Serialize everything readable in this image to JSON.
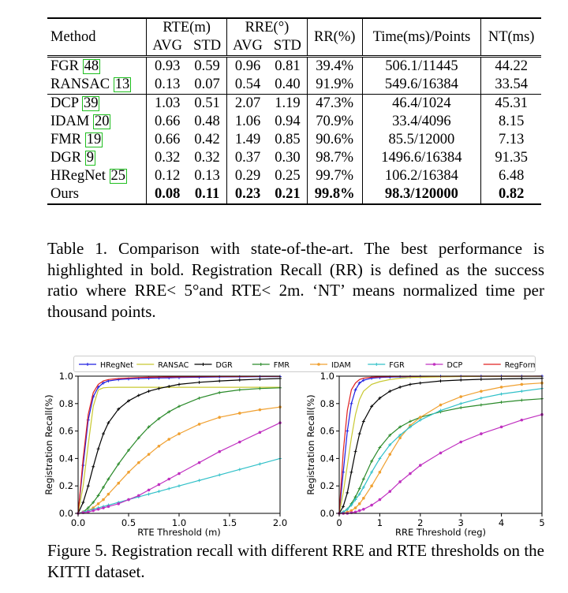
{
  "table": {
    "headers": {
      "method": "Method",
      "rte": "RTE(m)",
      "rre": "RRE(°)",
      "avg": "AVG",
      "std": "STD",
      "rr": "RR(%)",
      "time": "Time(ms)/Points",
      "nt": "NT(ms)"
    },
    "groups": [
      [
        {
          "method": "FGR",
          "ref": "48",
          "rte_avg": "0.93",
          "rte_std": "0.59",
          "rre_avg": "0.96",
          "rre_std": "0.81",
          "rr": "39.4%",
          "time": "506.1/11445",
          "nt": "44.22"
        },
        {
          "method": "RANSAC",
          "ref": "13",
          "rte_avg": "0.13",
          "rte_std": "0.07",
          "rre_avg": "0.54",
          "rre_std": "0.40",
          "rr": "91.9%",
          "time": "549.6/16384",
          "nt": "33.54"
        }
      ],
      [
        {
          "method": "DCP",
          "ref": "39",
          "rte_avg": "1.03",
          "rte_std": "0.51",
          "rre_avg": "2.07",
          "rre_std": "1.19",
          "rr": "47.3%",
          "time": "46.4/1024",
          "nt": "45.31"
        },
        {
          "method": "IDAM",
          "ref": "20",
          "rte_avg": "0.66",
          "rte_std": "0.48",
          "rre_avg": "1.06",
          "rre_std": "0.94",
          "rr": "70.9%",
          "time": "33.4/4096",
          "nt": "8.15"
        },
        {
          "method": "FMR",
          "ref": "19",
          "rte_avg": "0.66",
          "rte_std": "0.42",
          "rre_avg": "1.49",
          "rre_std": "0.85",
          "rr": "90.6%",
          "time": "85.5/12000",
          "nt": "7.13"
        },
        {
          "method": "DGR",
          "ref": "9",
          "rte_avg": "0.32",
          "rte_std": "0.32",
          "rre_avg": "0.37",
          "rre_std": "0.30",
          "rr": "98.7%",
          "time": "1496.6/16384",
          "nt": "91.35"
        },
        {
          "method": "HRegNet",
          "ref": "25",
          "rte_avg": "0.12",
          "rte_std": "0.13",
          "rre_avg": "0.29",
          "rre_std": "0.25",
          "rr": "99.7%",
          "time": "106.2/16384",
          "nt": "6.48"
        },
        {
          "method": "Ours",
          "ref": "",
          "rte_avg": "0.08",
          "rte_std": "0.11",
          "rre_avg": "0.23",
          "rre_std": "0.21",
          "rr": "99.8%",
          "time": "98.3/120000",
          "nt": "0.82",
          "bold": true
        }
      ]
    ]
  },
  "caption1": "Table 1. Comparison with state-of-the-art. The best performance is highlighted in bold. Registration Recall (RR) is defined as the success ratio where RRE< 5°and RTE< 2m. ‘NT’ means normalized time per thousand points.",
  "caption2": "Figure 5. Registration recall with different RRE and RTE thresholds on the KITTI dataset.",
  "chart_data": [
    {
      "type": "line",
      "xlabel": "RTE Threshold (m)",
      "ylabel": "Registration Recall(%)",
      "xlim": [
        0,
        2.0
      ],
      "ylim": [
        0,
        1.0
      ],
      "xticks": [
        "0.0",
        "0.5",
        "1.0",
        "1.5",
        "2.0"
      ],
      "yticks": [
        "0.0",
        "0.2",
        "0.4",
        "0.6",
        "0.8",
        "1.0"
      ],
      "x": [
        0,
        0.05,
        0.1,
        0.15,
        0.2,
        0.25,
        0.3,
        0.4,
        0.5,
        0.6,
        0.7,
        0.8,
        0.9,
        1.0,
        1.2,
        1.4,
        1.6,
        1.8,
        2.0
      ],
      "series": [
        {
          "name": "HRegNet",
          "color": "#1f1fe0",
          "marker": "plus",
          "values": [
            0,
            0.35,
            0.68,
            0.85,
            0.92,
            0.95,
            0.965,
            0.975,
            0.98,
            0.983,
            0.985,
            0.987,
            0.988,
            0.99,
            0.992,
            0.994,
            0.995,
            0.996,
            0.997
          ]
        },
        {
          "name": "RANSAC",
          "color": "#c8c830",
          "marker": "none",
          "values": [
            0,
            0.2,
            0.5,
            0.78,
            0.9,
            0.915,
            0.918,
            0.919,
            0.919,
            0.919,
            0.919,
            0.919,
            0.919,
            0.919,
            0.919,
            0.919,
            0.919,
            0.919,
            0.919
          ]
        },
        {
          "name": "DGR",
          "color": "#000000",
          "marker": "plus",
          "values": [
            0,
            0.08,
            0.2,
            0.34,
            0.47,
            0.58,
            0.66,
            0.76,
            0.82,
            0.86,
            0.89,
            0.91,
            0.925,
            0.94,
            0.955,
            0.965,
            0.972,
            0.978,
            0.983
          ]
        },
        {
          "name": "FMR",
          "color": "#2a8a2a",
          "marker": "plus",
          "values": [
            0,
            0.01,
            0.04,
            0.08,
            0.13,
            0.19,
            0.25,
            0.36,
            0.46,
            0.55,
            0.63,
            0.69,
            0.74,
            0.78,
            0.84,
            0.88,
            0.9,
            0.91,
            0.915
          ]
        },
        {
          "name": "IDAM",
          "color": "#f0a030",
          "marker": "dot",
          "values": [
            0,
            0.01,
            0.02,
            0.04,
            0.07,
            0.1,
            0.14,
            0.22,
            0.3,
            0.37,
            0.43,
            0.49,
            0.54,
            0.58,
            0.65,
            0.7,
            0.73,
            0.755,
            0.775
          ]
        },
        {
          "name": "FGR",
          "color": "#30c0c8",
          "marker": "plus",
          "values": [
            0,
            0.01,
            0.02,
            0.03,
            0.04,
            0.05,
            0.06,
            0.08,
            0.1,
            0.12,
            0.14,
            0.16,
            0.18,
            0.2,
            0.24,
            0.28,
            0.32,
            0.36,
            0.4
          ]
        },
        {
          "name": "DCP",
          "color": "#c030c0",
          "marker": "dot",
          "values": [
            0,
            0.005,
            0.01,
            0.02,
            0.03,
            0.04,
            0.05,
            0.07,
            0.1,
            0.13,
            0.17,
            0.21,
            0.25,
            0.29,
            0.37,
            0.45,
            0.52,
            0.59,
            0.66
          ]
        },
        {
          "name": "RegFormer",
          "color": "#e02020",
          "marker": "none",
          "values": [
            0,
            0.4,
            0.72,
            0.88,
            0.94,
            0.965,
            0.975,
            0.983,
            0.987,
            0.99,
            0.992,
            0.993,
            0.994,
            0.995,
            0.996,
            0.997,
            0.997,
            0.998,
            0.998
          ]
        }
      ]
    },
    {
      "type": "line",
      "xlabel": "RRE Threshold (reg)",
      "ylabel": "Registration Recall(%)",
      "xlim": [
        0,
        5
      ],
      "ylim": [
        0,
        1.0
      ],
      "xticks": [
        "0",
        "1",
        "2",
        "3",
        "4",
        "5"
      ],
      "yticks": [
        "0.0",
        "0.2",
        "0.4",
        "0.6",
        "0.8",
        "1.0"
      ],
      "x": [
        0,
        0.1,
        0.2,
        0.3,
        0.4,
        0.5,
        0.6,
        0.8,
        1.0,
        1.25,
        1.5,
        1.75,
        2.0,
        2.5,
        3.0,
        3.5,
        4.0,
        4.5,
        5.0
      ],
      "series": [
        {
          "name": "HRegNet",
          "color": "#1f1fe0",
          "marker": "plus",
          "values": [
            0,
            0.3,
            0.6,
            0.8,
            0.9,
            0.95,
            0.97,
            0.985,
            0.99,
            0.993,
            0.995,
            0.996,
            0.997,
            0.998,
            0.998,
            0.999,
            0.999,
            0.999,
            1.0
          ]
        },
        {
          "name": "RANSAC",
          "color": "#c8c830",
          "marker": "none",
          "values": [
            0,
            0.15,
            0.35,
            0.55,
            0.72,
            0.83,
            0.89,
            0.94,
            0.96,
            0.975,
            0.985,
            0.99,
            0.992,
            0.995,
            0.997,
            0.998,
            0.998,
            0.999,
            0.999
          ]
        },
        {
          "name": "DGR",
          "color": "#000000",
          "marker": "plus",
          "values": [
            0,
            0.05,
            0.15,
            0.3,
            0.45,
            0.58,
            0.67,
            0.78,
            0.84,
            0.89,
            0.92,
            0.94,
            0.95,
            0.965,
            0.972,
            0.977,
            0.98,
            0.982,
            0.984
          ]
        },
        {
          "name": "FMR",
          "color": "#2a8a2a",
          "marker": "plus",
          "values": [
            0,
            0.01,
            0.03,
            0.07,
            0.12,
            0.18,
            0.25,
            0.38,
            0.48,
            0.57,
            0.63,
            0.67,
            0.7,
            0.74,
            0.77,
            0.79,
            0.81,
            0.825,
            0.835
          ]
        },
        {
          "name": "IDAM",
          "color": "#f0a030",
          "marker": "dot",
          "values": [
            0,
            0.0,
            0.01,
            0.02,
            0.04,
            0.07,
            0.11,
            0.2,
            0.3,
            0.43,
            0.55,
            0.64,
            0.7,
            0.79,
            0.85,
            0.89,
            0.92,
            0.94,
            0.95
          ]
        },
        {
          "name": "FGR",
          "color": "#30c0c8",
          "marker": "plus",
          "values": [
            0,
            0.01,
            0.03,
            0.06,
            0.1,
            0.14,
            0.19,
            0.3,
            0.4,
            0.5,
            0.57,
            0.63,
            0.68,
            0.75,
            0.8,
            0.84,
            0.87,
            0.89,
            0.91
          ]
        },
        {
          "name": "DCP",
          "color": "#c030c0",
          "marker": "dot",
          "values": [
            0,
            0.0,
            0.0,
            0.005,
            0.01,
            0.02,
            0.03,
            0.06,
            0.1,
            0.16,
            0.23,
            0.29,
            0.35,
            0.44,
            0.52,
            0.58,
            0.63,
            0.68,
            0.72
          ]
        },
        {
          "name": "RegFormer",
          "color": "#e02020",
          "marker": "none",
          "values": [
            0,
            0.45,
            0.75,
            0.9,
            0.95,
            0.975,
            0.985,
            0.992,
            0.995,
            0.997,
            0.998,
            0.998,
            0.999,
            0.999,
            1.0,
            1.0,
            1.0,
            1.0,
            1.0
          ]
        }
      ]
    }
  ]
}
